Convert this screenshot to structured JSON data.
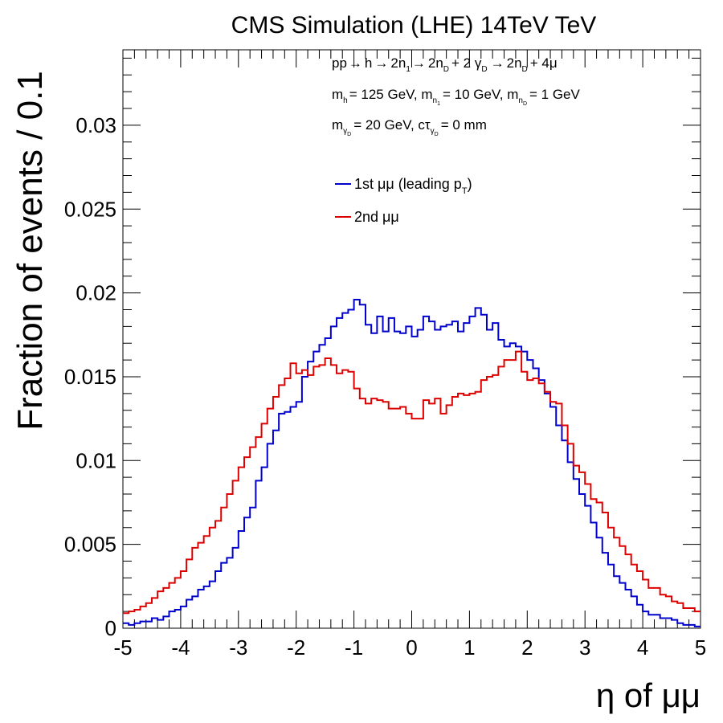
{
  "chart_data": {
    "type": "line",
    "title": "CMS Simulation (LHE) 14TeV TeV",
    "xlabel": "η of μμ",
    "ylabel": "Fraction of events / 0.1",
    "xlim": [
      -5,
      5
    ],
    "ylim": [
      0,
      0.0345
    ],
    "x_ticks": [
      "-5",
      "-4",
      "-3",
      "-2",
      "-1",
      "0",
      "1",
      "2",
      "3",
      "4",
      "5"
    ],
    "y_ticks": [
      "0",
      "0.005",
      "0.01",
      "0.015",
      "0.02",
      "0.025",
      "0.03"
    ],
    "grid": false,
    "legend_position": "upper-center",
    "annotations": [
      "pp → h → 2n₁ → 2n_D + 2 γ_D → 2n_D + 4μ",
      "m_h = 125 GeV, m_n₁ = 10 GeV, m_n_D = 1 GeV",
      "m_γ_D = 20 GeV, cτ_γ_D = 0 mm"
    ],
    "bin_edges_start": -5,
    "bin_width": 0.1,
    "series": [
      {
        "name": "1st μμ (leading p_T)",
        "color": "#0000cc",
        "values": [
          0.0003,
          0.0002,
          0.0003,
          0.0004,
          0.0004,
          0.0006,
          0.0005,
          0.0007,
          0.001,
          0.0011,
          0.0013,
          0.0017,
          0.0019,
          0.0023,
          0.0025,
          0.0028,
          0.0034,
          0.0039,
          0.0042,
          0.0048,
          0.0058,
          0.0066,
          0.0072,
          0.0088,
          0.0096,
          0.011,
          0.0118,
          0.0128,
          0.0129,
          0.0132,
          0.0135,
          0.015,
          0.0159,
          0.0165,
          0.0169,
          0.0173,
          0.018,
          0.0185,
          0.0188,
          0.019,
          0.0196,
          0.0193,
          0.0181,
          0.0176,
          0.0186,
          0.0177,
          0.0185,
          0.0177,
          0.0176,
          0.018,
          0.0174,
          0.0178,
          0.0186,
          0.0183,
          0.0178,
          0.018,
          0.0181,
          0.0183,
          0.0177,
          0.0182,
          0.0186,
          0.0191,
          0.0187,
          0.0178,
          0.0182,
          0.0172,
          0.0168,
          0.017,
          0.0168,
          0.0165,
          0.016,
          0.0155,
          0.0148,
          0.014,
          0.0132,
          0.0121,
          0.0112,
          0.0099,
          0.0089,
          0.008,
          0.0073,
          0.0063,
          0.0054,
          0.0045,
          0.0038,
          0.0031,
          0.0027,
          0.0023,
          0.0019,
          0.0014,
          0.001,
          0.0008,
          0.0008,
          0.0006,
          0.0006,
          0.0005,
          0.0003,
          0.0002,
          0.0002,
          0.0001
        ]
      },
      {
        "name": "2nd μμ",
        "color": "#dd0000",
        "values": [
          0.0009,
          0.001,
          0.0011,
          0.0013,
          0.0015,
          0.0018,
          0.0022,
          0.0024,
          0.0027,
          0.003,
          0.0034,
          0.0041,
          0.0048,
          0.0051,
          0.0055,
          0.006,
          0.0064,
          0.0072,
          0.008,
          0.0088,
          0.0096,
          0.0102,
          0.0108,
          0.0114,
          0.0122,
          0.0131,
          0.0138,
          0.0145,
          0.0149,
          0.0158,
          0.0152,
          0.0154,
          0.0151,
          0.0156,
          0.0157,
          0.0161,
          0.0157,
          0.0152,
          0.0154,
          0.0153,
          0.0143,
          0.0137,
          0.0134,
          0.0137,
          0.0136,
          0.0135,
          0.0131,
          0.0131,
          0.0132,
          0.0128,
          0.0125,
          0.0125,
          0.0136,
          0.0134,
          0.0137,
          0.0128,
          0.0133,
          0.0138,
          0.014,
          0.0139,
          0.014,
          0.0141,
          0.0148,
          0.015,
          0.0151,
          0.0156,
          0.016,
          0.016,
          0.0165,
          0.0153,
          0.0148,
          0.0149,
          0.0146,
          0.0141,
          0.0135,
          0.0134,
          0.0121,
          0.011,
          0.0097,
          0.0093,
          0.0086,
          0.0077,
          0.0075,
          0.0069,
          0.006,
          0.0054,
          0.0049,
          0.0044,
          0.0038,
          0.0034,
          0.0029,
          0.0024,
          0.0024,
          0.002,
          0.0019,
          0.0016,
          0.0015,
          0.0012,
          0.0012,
          0.001
        ]
      }
    ]
  },
  "labels": {
    "title": "CMS Simulation (LHE) 14TeV TeV",
    "xlabel": "η of μμ",
    "ylabel": "Fraction of events / 0.1",
    "legend_1": "1st μμ (leading p",
    "legend_1_sub": "T",
    "legend_1_tail": ")",
    "legend_2": "2nd μμ"
  }
}
